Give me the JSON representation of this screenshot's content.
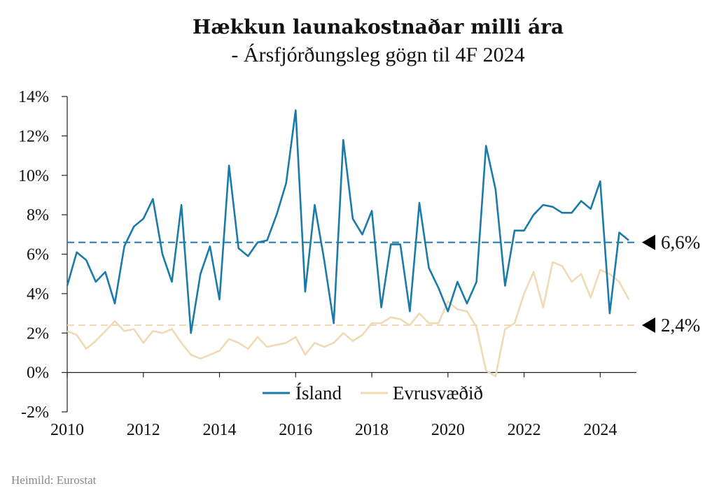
{
  "chart_data": {
    "type": "line",
    "title": "Hækkun launakostnaðar milli ára",
    "subtitle": "- Ársfjórðungsleg gögn til 4F 2024",
    "source": "Heimild: Eurostat",
    "ylim": [
      -2,
      14
    ],
    "xlim": [
      2010,
      2024.95
    ],
    "y_ticks": [
      "-2%",
      "0%",
      "2%",
      "4%",
      "6%",
      "8%",
      "10%",
      "12%",
      "14%"
    ],
    "y_tick_values": [
      -2,
      0,
      2,
      4,
      6,
      8,
      10,
      12,
      14
    ],
    "x_ticks": [
      "2010",
      "2012",
      "2014",
      "2016",
      "2018",
      "2020",
      "2022",
      "2024"
    ],
    "x_tick_values": [
      2010,
      2012,
      2014,
      2016,
      2018,
      2020,
      2022,
      2024
    ],
    "grid": false,
    "legend_position": "bottom-center",
    "colors": {
      "island": "#1a7aa8",
      "evrusvaedid": "#f0d9b5"
    },
    "series": [
      {
        "name": "Ísland",
        "x": [
          2010.0,
          2010.25,
          2010.5,
          2010.75,
          2011.0,
          2011.25,
          2011.5,
          2011.75,
          2012.0,
          2012.25,
          2012.5,
          2012.75,
          2013.0,
          2013.25,
          2013.5,
          2013.75,
          2014.0,
          2014.25,
          2014.5,
          2014.75,
          2015.0,
          2015.25,
          2015.5,
          2015.75,
          2016.0,
          2016.25,
          2016.5,
          2016.75,
          2017.0,
          2017.25,
          2017.5,
          2017.75,
          2018.0,
          2018.25,
          2018.5,
          2018.75,
          2019.0,
          2019.25,
          2019.5,
          2019.75,
          2020.0,
          2020.25,
          2020.5,
          2020.75,
          2021.0,
          2021.25,
          2021.5,
          2021.75,
          2022.0,
          2022.25,
          2022.5,
          2022.75,
          2023.0,
          2023.25,
          2023.5,
          2023.75,
          2024.0,
          2024.25,
          2024.5,
          2024.75
        ],
        "values": [
          4.4,
          6.1,
          5.7,
          4.6,
          5.1,
          3.5,
          6.4,
          7.4,
          7.8,
          8.8,
          6.0,
          4.6,
          8.5,
          2.0,
          5.0,
          6.4,
          3.7,
          10.5,
          6.3,
          5.9,
          6.6,
          6.7,
          8.0,
          9.6,
          13.3,
          4.1,
          8.5,
          5.7,
          2.5,
          11.8,
          7.8,
          7.0,
          8.2,
          3.3,
          6.5,
          6.5,
          3.1,
          8.6,
          5.3,
          4.3,
          3.1,
          4.6,
          3.5,
          4.6,
          11.5,
          9.3,
          4.4,
          7.2,
          7.2,
          8.0,
          8.5,
          8.4,
          8.1,
          8.1,
          8.7,
          8.3,
          9.7,
          3.0,
          7.1,
          6.7
        ]
      },
      {
        "name": "Evrusvæðið",
        "x": [
          2010.0,
          2010.25,
          2010.5,
          2010.75,
          2011.0,
          2011.25,
          2011.5,
          2011.75,
          2012.0,
          2012.25,
          2012.5,
          2012.75,
          2013.0,
          2013.25,
          2013.5,
          2013.75,
          2014.0,
          2014.25,
          2014.5,
          2014.75,
          2015.0,
          2015.25,
          2015.5,
          2015.75,
          2016.0,
          2016.25,
          2016.5,
          2016.75,
          2017.0,
          2017.25,
          2017.5,
          2017.75,
          2018.0,
          2018.25,
          2018.5,
          2018.75,
          2019.0,
          2019.25,
          2019.5,
          2019.75,
          2020.0,
          2020.25,
          2020.5,
          2020.75,
          2021.0,
          2021.25,
          2021.5,
          2021.75,
          2022.0,
          2022.25,
          2022.5,
          2022.75,
          2023.0,
          2023.25,
          2023.5,
          2023.75,
          2024.0,
          2024.25,
          2024.5,
          2024.75
        ],
        "values": [
          2.1,
          1.9,
          1.2,
          1.6,
          2.1,
          2.6,
          2.1,
          2.2,
          1.5,
          2.1,
          2.0,
          2.2,
          1.5,
          0.9,
          0.7,
          0.9,
          1.1,
          1.7,
          1.5,
          1.2,
          1.8,
          1.3,
          1.4,
          1.5,
          1.8,
          0.9,
          1.5,
          1.3,
          1.5,
          2.0,
          1.6,
          1.9,
          2.5,
          2.5,
          2.8,
          2.7,
          2.4,
          3.0,
          2.5,
          2.5,
          3.6,
          3.2,
          3.1,
          2.3,
          0.1,
          -0.2,
          2.2,
          2.5,
          4.0,
          5.1,
          3.3,
          5.6,
          5.4,
          4.6,
          5.0,
          3.8,
          5.2,
          5.0,
          4.6,
          3.7
        ]
      }
    ],
    "reference_lines": [
      {
        "series": "Ísland",
        "value": 6.6,
        "label": "6,6%"
      },
      {
        "series": "Evrusvæðið",
        "value": 2.4,
        "label": "2,4%"
      }
    ]
  }
}
